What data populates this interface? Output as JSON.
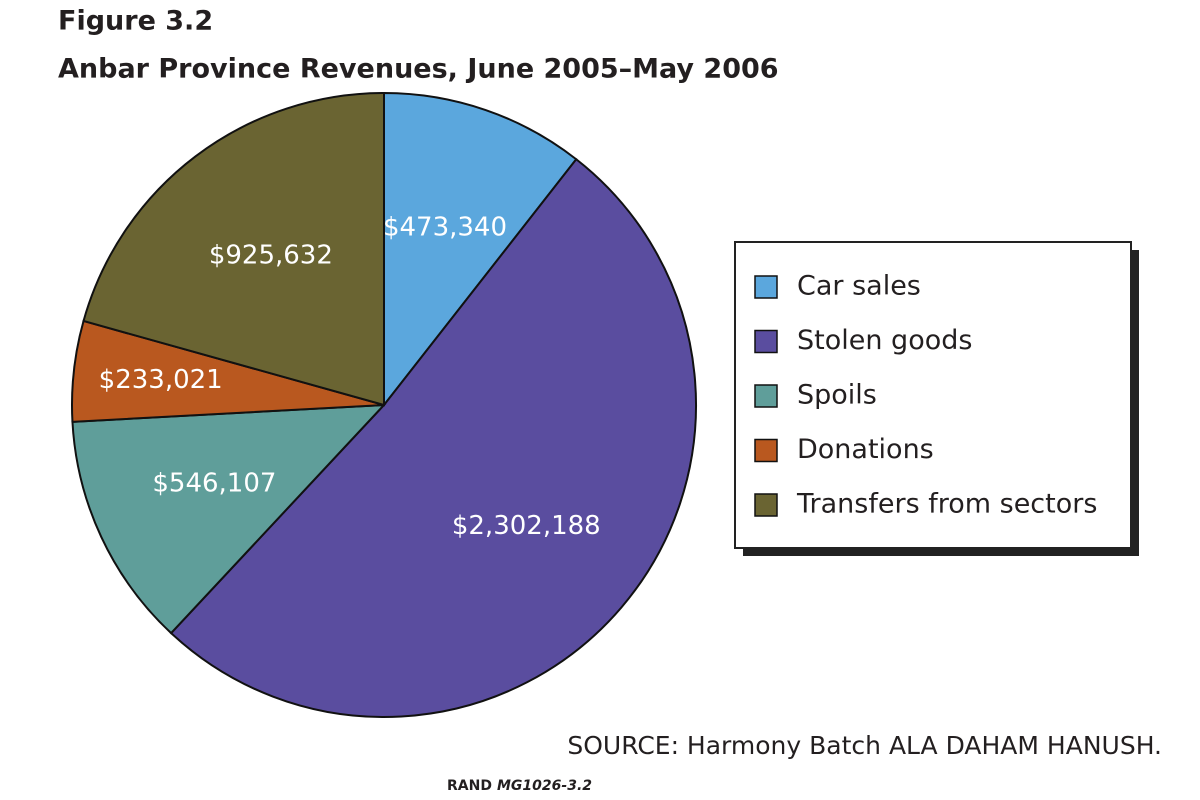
{
  "chart_data": {
    "type": "pie",
    "figure_label": "Figure 3.2",
    "title": "Anbar Province Revenues, June 2005–May 2006",
    "categories": [
      "Car sales",
      "Stolen goods",
      "Spoils",
      "Donations",
      "Transfers from sectors"
    ],
    "values": [
      473340,
      2302188,
      546107,
      233021,
      925632
    ],
    "value_labels": [
      "$473,340",
      "$2,302,188",
      "$546,107",
      "$233,021",
      "$925,632"
    ],
    "colors": [
      "#5ba7dd",
      "#5a4d9f",
      "#5f9e9a",
      "#b9581f",
      "#6a6432"
    ],
    "legend": "right",
    "source": "SOURCE: Harmony Batch ALA DAHAM HANUSH.",
    "credit_org": "RAND",
    "credit_code": "MG1026-3.2"
  }
}
